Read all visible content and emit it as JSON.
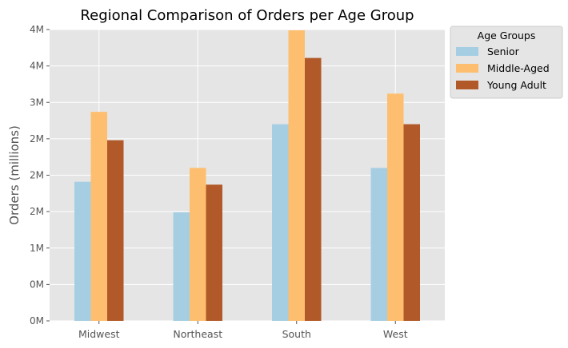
{
  "chart_data": {
    "type": "bar",
    "title": "Regional Comparison of Orders per Age Group",
    "xlabel": "",
    "ylabel": "Orders (millions)",
    "categories": [
      "Midwest",
      "Northeast",
      "South",
      "West"
    ],
    "series": [
      {
        "name": "Senior",
        "color": "#a6cee3",
        "values": [
          1.91,
          1.49,
          2.7,
          2.1
        ]
      },
      {
        "name": "Middle-Aged",
        "color": "#fdbf6f",
        "values": [
          2.87,
          2.1,
          3.99,
          3.12
        ]
      },
      {
        "name": "Young Adult",
        "color": "#b15928",
        "values": [
          2.48,
          1.87,
          3.61,
          2.7
        ]
      }
    ],
    "ylim": [
      0,
      4.0
    ],
    "yticks": [
      0,
      0.5,
      1.0,
      1.5,
      2.0,
      2.5,
      3.0,
      3.5,
      4.0
    ],
    "yticklabels": [
      "0M",
      "0M",
      "1M",
      "2M",
      "2M",
      "2M",
      "3M",
      "4M",
      "4M"
    ],
    "legend": {
      "title": "Age Groups",
      "placement": "outside-upper-right"
    },
    "grid": true,
    "style": {
      "background": "#e5e5e5",
      "grid_color": "#ffffff",
      "axis_text_color": "#555555"
    }
  }
}
